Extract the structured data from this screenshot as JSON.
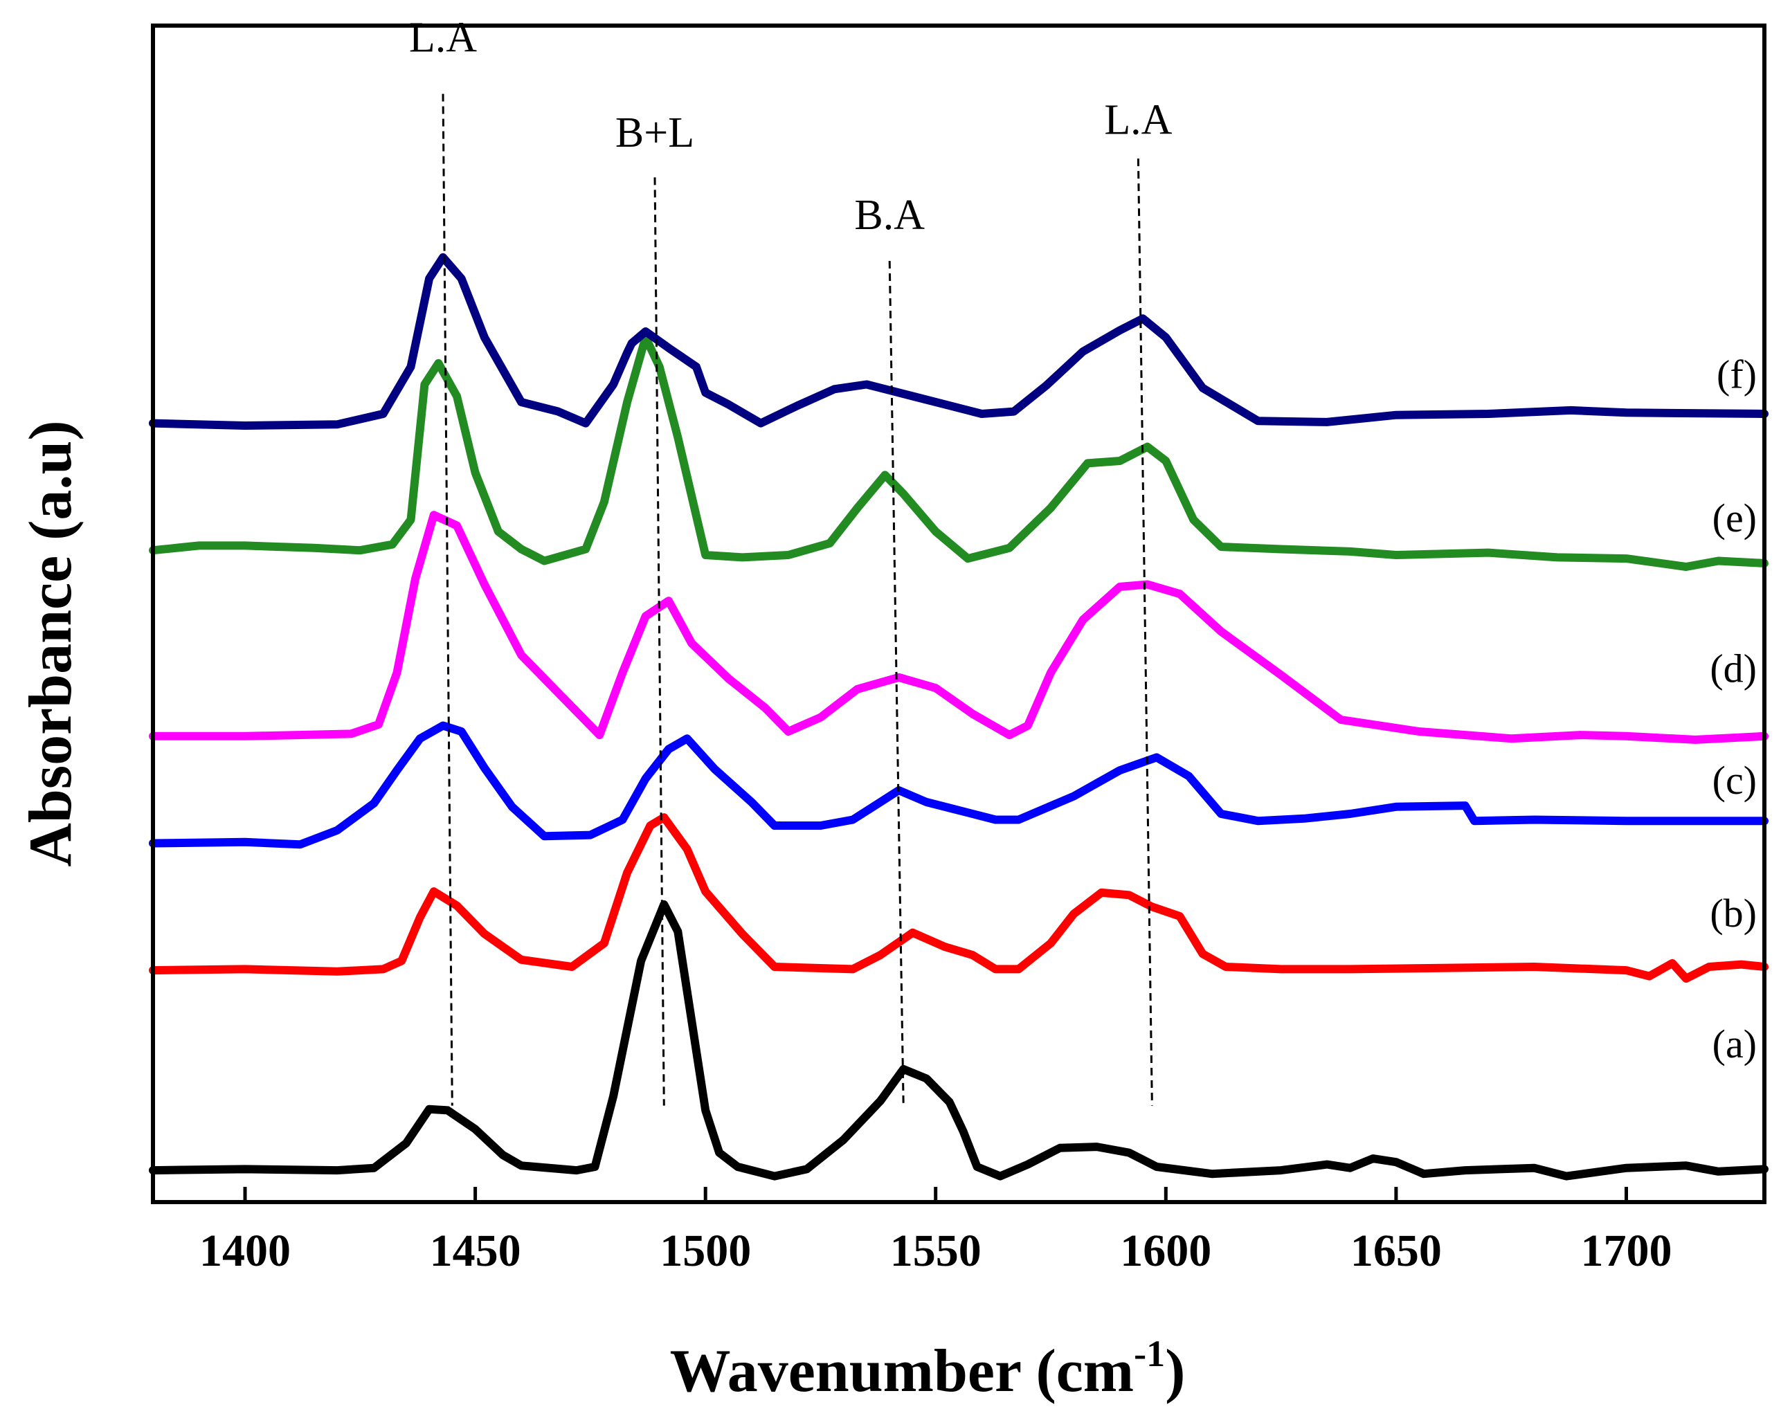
{
  "chart_data": {
    "type": "line",
    "title": "",
    "xlabel": "Wavenumber",
    "xlabel_unit_base": "cm",
    "xlabel_unit_exp": "-1",
    "ylabel": "Absorbance (a.u)",
    "xlim": [
      1380,
      1730
    ],
    "ylim": [
      0,
      10
    ],
    "x_ticks": [
      1400,
      1450,
      1500,
      1550,
      1600,
      1650,
      1700
    ],
    "y_ticks": [],
    "grid": false,
    "legend": "none",
    "series": [
      {
        "name": "(a)",
        "color": "#000000",
        "label_y": 1.23,
        "points": [
          [
            1380,
            0.27
          ],
          [
            1400,
            0.28
          ],
          [
            1420,
            0.27
          ],
          [
            1428,
            0.29
          ],
          [
            1435,
            0.5
          ],
          [
            1440,
            0.79
          ],
          [
            1444,
            0.78
          ],
          [
            1450,
            0.62
          ],
          [
            1456,
            0.4
          ],
          [
            1460,
            0.31
          ],
          [
            1472,
            0.27
          ],
          [
            1476,
            0.3
          ],
          [
            1480,
            0.9
          ],
          [
            1486,
            2.05
          ],
          [
            1491,
            2.53
          ],
          [
            1494,
            2.3
          ],
          [
            1500,
            0.78
          ],
          [
            1503,
            0.42
          ],
          [
            1507,
            0.3
          ],
          [
            1515,
            0.22
          ],
          [
            1522,
            0.28
          ],
          [
            1530,
            0.53
          ],
          [
            1538,
            0.86
          ],
          [
            1543,
            1.13
          ],
          [
            1548,
            1.05
          ],
          [
            1553,
            0.85
          ],
          [
            1556,
            0.6
          ],
          [
            1559,
            0.3
          ],
          [
            1564,
            0.22
          ],
          [
            1570,
            0.32
          ],
          [
            1577,
            0.46
          ],
          [
            1585,
            0.47
          ],
          [
            1592,
            0.42
          ],
          [
            1598,
            0.3
          ],
          [
            1610,
            0.24
          ],
          [
            1625,
            0.27
          ],
          [
            1635,
            0.32
          ],
          [
            1640,
            0.29
          ],
          [
            1645,
            0.37
          ],
          [
            1650,
            0.34
          ],
          [
            1656,
            0.24
          ],
          [
            1665,
            0.27
          ],
          [
            1680,
            0.29
          ],
          [
            1687,
            0.22
          ],
          [
            1700,
            0.29
          ],
          [
            1713,
            0.31
          ],
          [
            1720,
            0.26
          ],
          [
            1730,
            0.28
          ]
        ]
      },
      {
        "name": "(b)",
        "color": "#ff0000",
        "label_y": 2.34,
        "points": [
          [
            1380,
            1.97
          ],
          [
            1400,
            1.98
          ],
          [
            1420,
            1.96
          ],
          [
            1430,
            1.98
          ],
          [
            1434,
            2.05
          ],
          [
            1438,
            2.42
          ],
          [
            1441,
            2.64
          ],
          [
            1446,
            2.52
          ],
          [
            1452,
            2.28
          ],
          [
            1460,
            2.06
          ],
          [
            1471,
            2.0
          ],
          [
            1478,
            2.2
          ],
          [
            1483,
            2.8
          ],
          [
            1488,
            3.2
          ],
          [
            1491,
            3.27
          ],
          [
            1496,
            3.0
          ],
          [
            1500,
            2.64
          ],
          [
            1508,
            2.28
          ],
          [
            1515,
            2.0
          ],
          [
            1532,
            1.98
          ],
          [
            1538,
            2.1
          ],
          [
            1545,
            2.29
          ],
          [
            1552,
            2.17
          ],
          [
            1558,
            2.1
          ],
          [
            1563,
            1.98
          ],
          [
            1568,
            1.98
          ],
          [
            1575,
            2.2
          ],
          [
            1580,
            2.45
          ],
          [
            1586,
            2.63
          ],
          [
            1592,
            2.61
          ],
          [
            1597,
            2.51
          ],
          [
            1603,
            2.43
          ],
          [
            1608,
            2.11
          ],
          [
            1613,
            2.0
          ],
          [
            1625,
            1.98
          ],
          [
            1640,
            1.98
          ],
          [
            1660,
            1.99
          ],
          [
            1680,
            2.0
          ],
          [
            1700,
            1.97
          ],
          [
            1705,
            1.92
          ],
          [
            1710,
            2.03
          ],
          [
            1713,
            1.9
          ],
          [
            1718,
            2.0
          ],
          [
            1725,
            2.02
          ],
          [
            1730,
            2.0
          ]
        ]
      },
      {
        "name": "(c)",
        "color": "#0000ff",
        "label_y": 3.47,
        "points": [
          [
            1380,
            3.05
          ],
          [
            1400,
            3.06
          ],
          [
            1412,
            3.04
          ],
          [
            1420,
            3.16
          ],
          [
            1428,
            3.39
          ],
          [
            1433,
            3.67
          ],
          [
            1438,
            3.94
          ],
          [
            1443,
            4.05
          ],
          [
            1447,
            4.0
          ],
          [
            1452,
            3.69
          ],
          [
            1458,
            3.36
          ],
          [
            1465,
            3.11
          ],
          [
            1475,
            3.12
          ],
          [
            1482,
            3.25
          ],
          [
            1487,
            3.6
          ],
          [
            1492,
            3.85
          ],
          [
            1496,
            3.94
          ],
          [
            1502,
            3.68
          ],
          [
            1510,
            3.4
          ],
          [
            1515,
            3.2
          ],
          [
            1525,
            3.2
          ],
          [
            1532,
            3.25
          ],
          [
            1542,
            3.5
          ],
          [
            1548,
            3.4
          ],
          [
            1553,
            3.35
          ],
          [
            1563,
            3.25
          ],
          [
            1568,
            3.25
          ],
          [
            1580,
            3.45
          ],
          [
            1590,
            3.67
          ],
          [
            1598,
            3.78
          ],
          [
            1605,
            3.62
          ],
          [
            1612,
            3.3
          ],
          [
            1620,
            3.24
          ],
          [
            1630,
            3.26
          ],
          [
            1640,
            3.3
          ],
          [
            1650,
            3.36
          ],
          [
            1665,
            3.37
          ],
          [
            1667,
            3.24
          ],
          [
            1680,
            3.25
          ],
          [
            1700,
            3.24
          ],
          [
            1730,
            3.24
          ]
        ]
      },
      {
        "name": "(d)",
        "color": "#ff00ff",
        "label_y": 4.42,
        "points": [
          [
            1380,
            3.96
          ],
          [
            1400,
            3.96
          ],
          [
            1423,
            3.98
          ],
          [
            1429,
            4.06
          ],
          [
            1433,
            4.5
          ],
          [
            1437,
            5.3
          ],
          [
            1441,
            5.84
          ],
          [
            1446,
            5.75
          ],
          [
            1452,
            5.25
          ],
          [
            1460,
            4.65
          ],
          [
            1468,
            4.33
          ],
          [
            1477,
            3.97
          ],
          [
            1482,
            4.5
          ],
          [
            1487,
            4.98
          ],
          [
            1492,
            5.11
          ],
          [
            1497,
            4.75
          ],
          [
            1505,
            4.45
          ],
          [
            1513,
            4.2
          ],
          [
            1518,
            4.0
          ],
          [
            1525,
            4.12
          ],
          [
            1533,
            4.36
          ],
          [
            1542,
            4.46
          ],
          [
            1550,
            4.37
          ],
          [
            1558,
            4.15
          ],
          [
            1566,
            3.97
          ],
          [
            1570,
            4.05
          ],
          [
            1575,
            4.5
          ],
          [
            1582,
            4.95
          ],
          [
            1590,
            5.23
          ],
          [
            1596,
            5.25
          ],
          [
            1603,
            5.17
          ],
          [
            1612,
            4.85
          ],
          [
            1625,
            4.48
          ],
          [
            1638,
            4.1
          ],
          [
            1655,
            4.0
          ],
          [
            1675,
            3.94
          ],
          [
            1690,
            3.97
          ],
          [
            1700,
            3.96
          ],
          [
            1715,
            3.93
          ],
          [
            1730,
            3.96
          ]
        ]
      },
      {
        "name": "(e)",
        "color": "#228b22",
        "label_y": 5.7,
        "points": [
          [
            1380,
            5.54
          ],
          [
            1390,
            5.58
          ],
          [
            1400,
            5.58
          ],
          [
            1415,
            5.56
          ],
          [
            1425,
            5.54
          ],
          [
            1432,
            5.59
          ],
          [
            1436,
            5.8
          ],
          [
            1439,
            6.95
          ],
          [
            1442,
            7.13
          ],
          [
            1446,
            6.85
          ],
          [
            1450,
            6.2
          ],
          [
            1455,
            5.7
          ],
          [
            1460,
            5.55
          ],
          [
            1465,
            5.45
          ],
          [
            1474,
            5.55
          ],
          [
            1478,
            5.95
          ],
          [
            1483,
            6.8
          ],
          [
            1487,
            7.35
          ],
          [
            1490,
            7.1
          ],
          [
            1494,
            6.5
          ],
          [
            1500,
            5.5
          ],
          [
            1508,
            5.48
          ],
          [
            1518,
            5.5
          ],
          [
            1527,
            5.6
          ],
          [
            1533,
            5.9
          ],
          [
            1539,
            6.18
          ],
          [
            1543,
            6.02
          ],
          [
            1550,
            5.7
          ],
          [
            1557,
            5.47
          ],
          [
            1566,
            5.56
          ],
          [
            1575,
            5.9
          ],
          [
            1583,
            6.28
          ],
          [
            1590,
            6.3
          ],
          [
            1596,
            6.42
          ],
          [
            1600,
            6.3
          ],
          [
            1606,
            5.8
          ],
          [
            1612,
            5.57
          ],
          [
            1625,
            5.55
          ],
          [
            1640,
            5.53
          ],
          [
            1650,
            5.5
          ],
          [
            1670,
            5.52
          ],
          [
            1685,
            5.48
          ],
          [
            1700,
            5.47
          ],
          [
            1713,
            5.4
          ],
          [
            1720,
            5.45
          ],
          [
            1730,
            5.43
          ]
        ]
      },
      {
        "name": "(f)",
        "color": "#000080",
        "label_y": 6.92,
        "points": [
          [
            1380,
            6.62
          ],
          [
            1400,
            6.6
          ],
          [
            1420,
            6.61
          ],
          [
            1430,
            6.7
          ],
          [
            1436,
            7.1
          ],
          [
            1440,
            7.85
          ],
          [
            1443,
            8.03
          ],
          [
            1447,
            7.85
          ],
          [
            1452,
            7.35
          ],
          [
            1460,
            6.8
          ],
          [
            1468,
            6.72
          ],
          [
            1474,
            6.62
          ],
          [
            1480,
            6.95
          ],
          [
            1483,
            7.22
          ],
          [
            1484,
            7.3
          ],
          [
            1487,
            7.4
          ],
          [
            1492,
            7.26
          ],
          [
            1498,
            7.1
          ],
          [
            1500,
            6.88
          ],
          [
            1505,
            6.78
          ],
          [
            1512,
            6.62
          ],
          [
            1520,
            6.77
          ],
          [
            1528,
            6.91
          ],
          [
            1535,
            6.95
          ],
          [
            1545,
            6.85
          ],
          [
            1553,
            6.77
          ],
          [
            1560,
            6.7
          ],
          [
            1567,
            6.72
          ],
          [
            1574,
            6.94
          ],
          [
            1582,
            7.23
          ],
          [
            1590,
            7.41
          ],
          [
            1595,
            7.51
          ],
          [
            1600,
            7.35
          ],
          [
            1608,
            6.92
          ],
          [
            1620,
            6.64
          ],
          [
            1635,
            6.63
          ],
          [
            1650,
            6.69
          ],
          [
            1670,
            6.7
          ],
          [
            1688,
            6.73
          ],
          [
            1700,
            6.71
          ],
          [
            1730,
            6.7
          ]
        ]
      }
    ],
    "annotations": [
      {
        "text": "L.A",
        "ref_x_top": 1443,
        "ref_x_bottom": 1445,
        "label_y": 9.78,
        "top_y": 9.42
      },
      {
        "text": "B+L",
        "ref_x_top": 1489,
        "ref_x_bottom": 1491,
        "label_y": 8.97,
        "top_y": 8.71
      },
      {
        "text": "B.A",
        "ref_x_top": 1540,
        "ref_x_bottom": 1543,
        "label_y": 8.27,
        "top_y": 8.0
      },
      {
        "text": "L.A",
        "ref_x_top": 1594,
        "ref_x_bottom": 1597,
        "label_y": 9.08,
        "top_y": 8.87
      }
    ]
  }
}
